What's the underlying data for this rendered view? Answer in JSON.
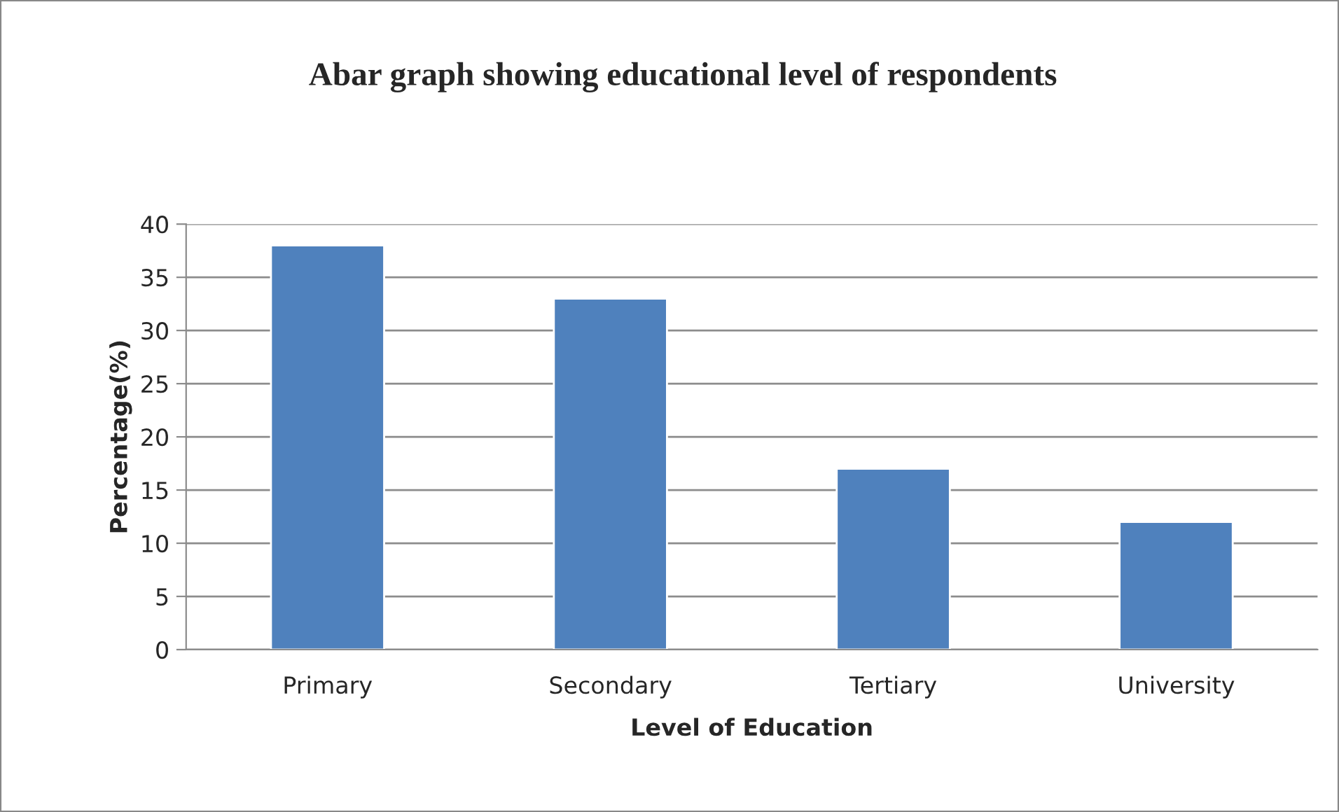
{
  "chart_data": {
    "type": "bar",
    "title": "Abar graph showing educational level of respondents",
    "xlabel": "Level of Education",
    "ylabel": "Percentage(%)",
    "categories": [
      "Primary",
      "Secondary",
      "Tertiary",
      "University"
    ],
    "values": [
      38,
      33,
      17,
      12
    ],
    "color": "#4f81bd",
    "ylim": [
      0,
      40
    ],
    "yticks": [
      0,
      5,
      10,
      15,
      20,
      25,
      30,
      35,
      40
    ],
    "grid": "y",
    "legend": false
  }
}
